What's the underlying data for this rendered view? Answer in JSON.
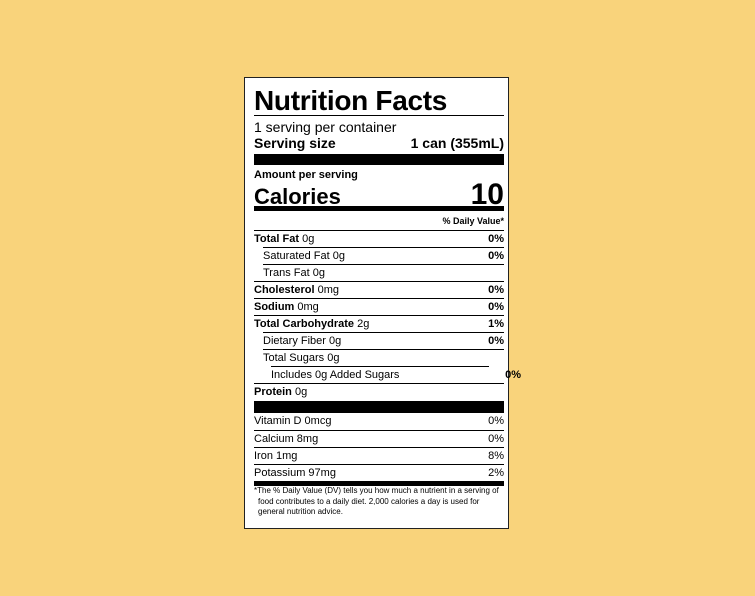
{
  "label": {
    "title": "Nutrition Facts",
    "servings_per_container": "1 serving per container",
    "serving_size_label": "Serving size",
    "serving_size_value": "1 can (355mL)",
    "amount_per_serving": "Amount per serving",
    "calories_label": "Calories",
    "calories_value": "10",
    "daily_value_header": "% Daily Value*",
    "nutrients": [
      {
        "name": "Total Fat",
        "amount": "0g",
        "dv": "0%",
        "bold": true,
        "indent": 0
      },
      {
        "name": "Saturated Fat",
        "amount": "0g",
        "dv": "0%",
        "bold": false,
        "indent": 1
      },
      {
        "name": "Trans Fat",
        "amount": "0g",
        "dv": "",
        "bold": false,
        "indent": 1
      },
      {
        "name": "Cholesterol",
        "amount": "0mg",
        "dv": "0%",
        "bold": true,
        "indent": 0
      },
      {
        "name": "Sodium",
        "amount": "0mg",
        "dv": "0%",
        "bold": true,
        "indent": 0
      },
      {
        "name": "Total Carbohydrate",
        "amount": "2g",
        "dv": "1%",
        "bold": true,
        "indent": 0
      },
      {
        "name": "Dietary Fiber",
        "amount": "0g",
        "dv": "0%",
        "bold": false,
        "indent": 1
      },
      {
        "name": "Total Sugars",
        "amount": "0g",
        "dv": "",
        "bold": false,
        "indent": 1
      },
      {
        "name": "Includes 0g Added Sugars",
        "amount": "",
        "dv": "0%",
        "bold": false,
        "indent": 2
      },
      {
        "name": "Protein",
        "amount": "0g",
        "dv": "",
        "bold": true,
        "indent": 0
      }
    ],
    "vitamins": [
      {
        "name": "Vitamin D",
        "amount": "0mcg",
        "dv": "0%"
      },
      {
        "name": "Calcium",
        "amount": "8mg",
        "dv": "0%"
      },
      {
        "name": "Iron",
        "amount": "1mg",
        "dv": "8%"
      },
      {
        "name": "Potassium",
        "amount": "97mg",
        "dv": "2%"
      }
    ],
    "footnote": "*The % Daily Value (DV) tells you how much a nutrient in a serving of food contributes to a daily diet. 2,000 calories a day is used for general nutrition advice."
  },
  "colors": {
    "background": "#f9d37b",
    "label": "#ffffff",
    "ink": "#000000"
  }
}
